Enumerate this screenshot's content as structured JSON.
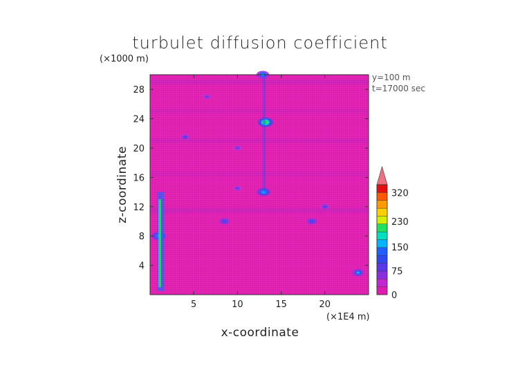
{
  "chart_data": {
    "type": "heatmap",
    "title": "turbulet diffusion coefficient",
    "xlabel": "x-coordinate",
    "ylabel": "z-coordinate",
    "x_unit": "(×1E4 m)",
    "y_unit": "(×1000 m)",
    "annotations": [
      "y=100  m",
      "t=17000 sec"
    ],
    "xlim": [
      0,
      25
    ],
    "ylim": [
      0,
      30
    ],
    "x_ticks": [
      5,
      10,
      15,
      20
    ],
    "y_ticks": [
      4,
      8,
      12,
      16,
      20,
      24,
      28
    ],
    "colorbar": {
      "range": [
        0,
        345
      ],
      "labels": [
        0,
        75,
        150,
        230,
        320
      ],
      "colors": [
        "#e01bb0",
        "#c02ad0",
        "#8a2ee0",
        "#5a37e8",
        "#2f49f0",
        "#2060ff",
        "#00b4ff",
        "#00e0c0",
        "#20e060",
        "#d2f000",
        "#ffd000",
        "#ff9a00",
        "#ff5a00",
        "#e41010"
      ],
      "extend_top_color": "#f07080"
    },
    "background_value_color": "#e01bb0",
    "structures": [
      {
        "x": 1.0,
        "z": 8.0,
        "value": 180
      },
      {
        "x": 13.2,
        "z": 23.5,
        "value": 220
      },
      {
        "x": 13.0,
        "z": 14.0,
        "value": 170
      },
      {
        "x": 12.9,
        "z": 30.0,
        "value": 160
      },
      {
        "x": 8.5,
        "z": 10.0,
        "value": 110
      },
      {
        "x": 18.5,
        "z": 10.0,
        "value": 110
      },
      {
        "x": 20.0,
        "z": 12.0,
        "value": 95
      },
      {
        "x": 4.0,
        "z": 21.5,
        "value": 95
      },
      {
        "x": 10.0,
        "z": 20.0,
        "value": 80
      },
      {
        "x": 23.8,
        "z": 3.0,
        "value": 150
      },
      {
        "x": 10.0,
        "z": 14.5,
        "value": 85
      },
      {
        "x": 6.5,
        "z": 27.0,
        "value": 75
      }
    ]
  }
}
